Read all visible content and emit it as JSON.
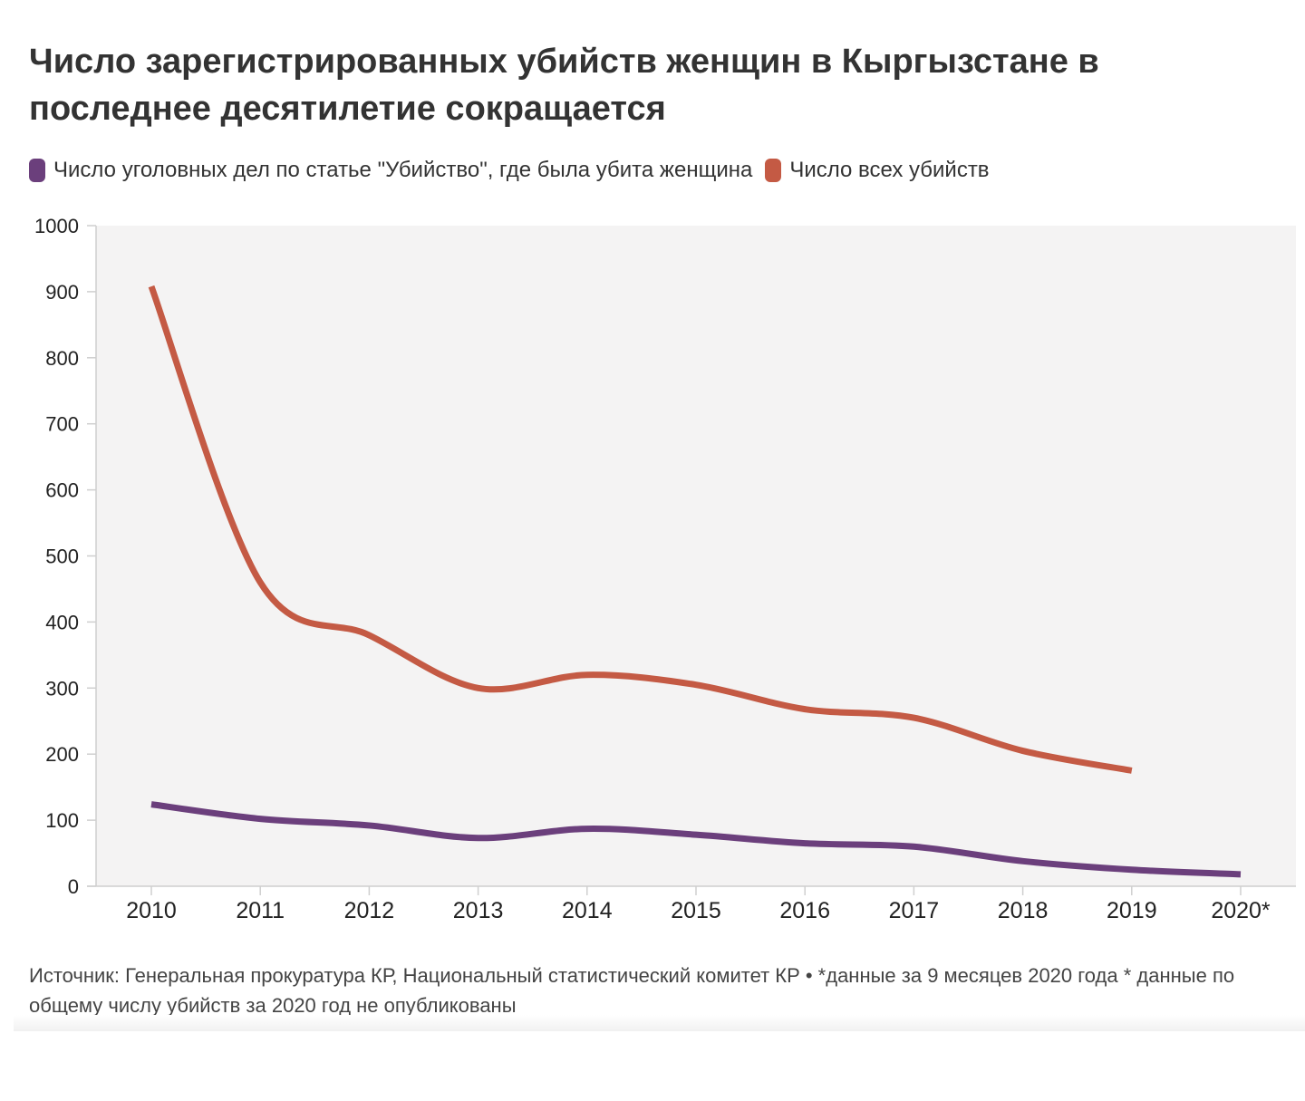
{
  "title": "Число зарегистрированных убийств женщин в Кыргызстане в последнее десятилетие сокращается",
  "legend": {
    "women": "Число уголовных дел по статье \"Убийство\", где была убита женщина",
    "all": "Число всех убийств"
  },
  "source": "Источник: Генеральная прокуратура КР, Национальный статистический комитет КР • *данные за 9 месяцев 2020 года * данные по общему числу убийств за 2020 год не опубликованы",
  "colors": {
    "women": "#6b3f7c",
    "all": "#c45a44",
    "plot_bg": "#f4f3f3",
    "axis": "#cfcfcf"
  },
  "chart_data": {
    "type": "line",
    "title": "Число зарегистрированных убийств женщин в Кыргызстане в последнее десятилетие сокращается",
    "xlabel": "",
    "ylabel": "",
    "categories": [
      "2010",
      "2011",
      "2012",
      "2013",
      "2014",
      "2015",
      "2016",
      "2017",
      "2018",
      "2019",
      "2020*"
    ],
    "ylim": [
      0,
      1000
    ],
    "yticks": [
      "0",
      "100",
      "200",
      "300",
      "400",
      "500",
      "600",
      "700",
      "800",
      "900",
      "1000"
    ],
    "grid": false,
    "legend_position": "top-left",
    "series": [
      {
        "name": "Число уголовных дел по статье \"Убийство\", где была убита женщина",
        "key": "women",
        "values": [
          124,
          102,
          92,
          73,
          87,
          78,
          65,
          60,
          38,
          25,
          18
        ]
      },
      {
        "name": "Число всех убийств",
        "key": "all",
        "values": [
          908,
          460,
          380,
          300,
          320,
          305,
          268,
          255,
          205,
          175,
          null
        ]
      }
    ]
  }
}
